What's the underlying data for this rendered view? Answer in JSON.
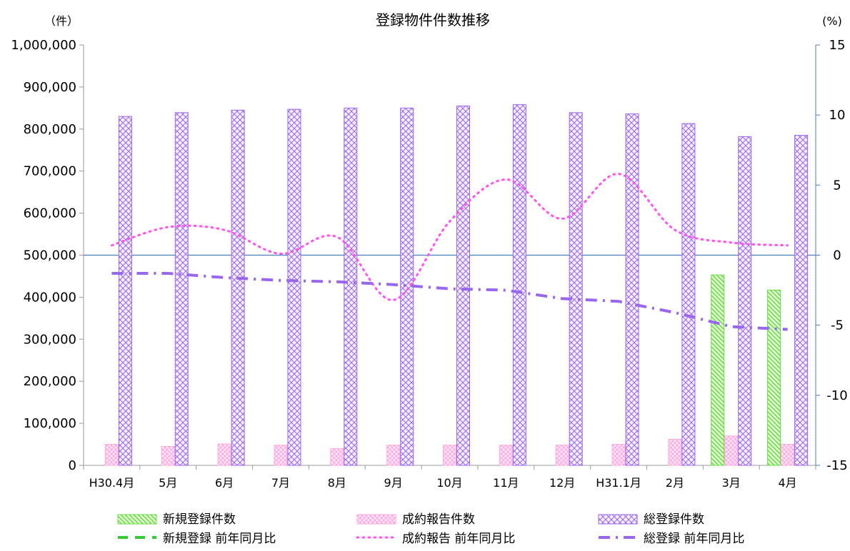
{
  "chart_data": {
    "type": "bar",
    "title": "登録物件件数推移",
    "left_axis_unit": "（件）",
    "right_axis_unit": "(%)",
    "categories": [
      "H30.4月",
      "5月",
      "6月",
      "7月",
      "8月",
      "9月",
      "10月",
      "11月",
      "12月",
      "H31.1月",
      "2月",
      "3月",
      "4月"
    ],
    "y_left": {
      "range": [
        0,
        1000000
      ],
      "ticks": [
        0,
        100000,
        200000,
        300000,
        400000,
        500000,
        600000,
        700000,
        800000,
        900000,
        1000000
      ],
      "tick_labels": [
        "0",
        "100,000",
        "200,000",
        "300,000",
        "400,000",
        "500,000",
        "600,000",
        "700,000",
        "800,000",
        "900,000",
        "1,000,000"
      ]
    },
    "y_right": {
      "range": [
        -15,
        15
      ],
      "ticks": [
        -15,
        -10,
        -5,
        0,
        5,
        10,
        15
      ],
      "tick_labels": [
        "-15",
        "-10",
        "-5",
        "0",
        "5",
        "10",
        "15"
      ]
    },
    "bar_series": [
      {
        "name": "新規登録件数",
        "color": "#66dd44",
        "values": [
          null,
          null,
          null,
          null,
          null,
          null,
          null,
          null,
          null,
          null,
          null,
          453000,
          417000
        ]
      },
      {
        "name": "成約報告件数",
        "color": "#ff88dd",
        "values": [
          50000,
          45000,
          51000,
          48000,
          40000,
          48000,
          48000,
          48000,
          48000,
          50000,
          62000,
          70000,
          50000
        ]
      },
      {
        "name": "総登録件数",
        "color": "#9966ee",
        "values": [
          830000,
          839000,
          845000,
          847000,
          850000,
          850000,
          855000,
          858000,
          839000,
          836000,
          813000,
          782000,
          785000
        ]
      }
    ],
    "line_series": [
      {
        "name": "新規登録 前年同月比",
        "color": "#33cc33",
        "style": "dashed",
        "values": [
          null,
          null,
          null,
          null,
          null,
          null,
          null,
          null,
          null,
          null,
          null,
          null,
          null
        ]
      },
      {
        "name": "成約報告 前年同月比",
        "color": "#ff55ee",
        "style": "dotted",
        "values": [
          0.7,
          2.0,
          1.8,
          0.1,
          1.3,
          -3.2,
          2.4,
          5.4,
          2.6,
          5.8,
          1.8,
          0.9,
          0.7
        ]
      },
      {
        "name": "総登録 前年同月比",
        "color": "#9966ee",
        "style": "dash-dot",
        "values": [
          -1.3,
          -1.3,
          -1.6,
          -1.8,
          -1.9,
          -2.1,
          -2.4,
          -2.5,
          -3.1,
          -3.3,
          -4.1,
          -5.1,
          -5.3
        ]
      }
    ],
    "legend_position": "bottom",
    "grid": false
  }
}
